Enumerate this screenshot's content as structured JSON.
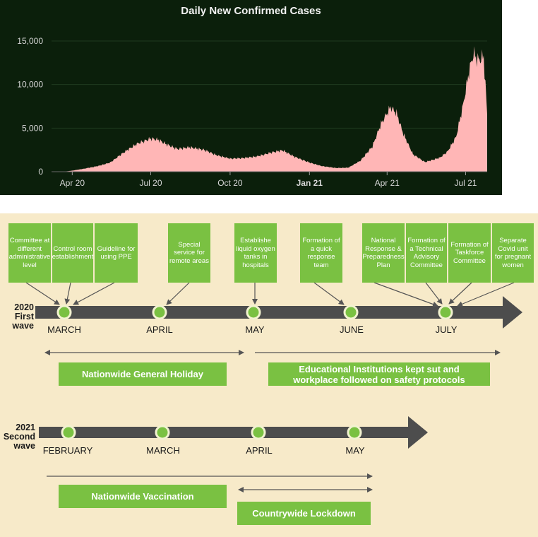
{
  "chart_data": {
    "type": "area",
    "title": "Daily New Confirmed Cases",
    "xlabel": "",
    "ylabel": "",
    "x_range": [
      "2020-03-08",
      "2021-07-26"
    ],
    "ylim": [
      0,
      15000
    ],
    "y_ticks": [
      {
        "value": 0,
        "label": "0"
      },
      {
        "value": 5000,
        "label": "5,000"
      },
      {
        "value": 10000,
        "label": "10,000"
      },
      {
        "value": 15000,
        "label": "15,000"
      }
    ],
    "x_ticks": [
      {
        "date": "2020-04-01",
        "label": "Apr 20",
        "bold": false
      },
      {
        "date": "2020-07-01",
        "label": "Jul 20",
        "bold": false
      },
      {
        "date": "2020-10-01",
        "label": "Oct 20",
        "bold": false
      },
      {
        "date": "2021-01-01",
        "label": "Jan 21",
        "bold": true
      },
      {
        "date": "2021-04-01",
        "label": "Apr 21",
        "bold": false
      },
      {
        "date": "2021-07-01",
        "label": "Jul 21",
        "bold": false
      }
    ],
    "grid": true,
    "colors": {
      "fill": "#ffb6b6",
      "background": "#0b1f0b",
      "grid": "#1f3a1f",
      "text": "#d8d8d8"
    },
    "series": [
      {
        "points": [
          [
            "2020-03-08",
            0
          ],
          [
            "2020-03-25",
            40
          ],
          [
            "2020-04-01",
            120
          ],
          [
            "2020-04-15",
            350
          ],
          [
            "2020-05-01",
            650
          ],
          [
            "2020-05-15",
            1050
          ],
          [
            "2020-06-01",
            2300
          ],
          [
            "2020-06-15",
            3200
          ],
          [
            "2020-07-01",
            3800
          ],
          [
            "2020-07-10",
            3650
          ],
          [
            "2020-07-20",
            3100
          ],
          [
            "2020-08-01",
            2600
          ],
          [
            "2020-08-15",
            2800
          ],
          [
            "2020-09-01",
            2500
          ],
          [
            "2020-09-15",
            1900
          ],
          [
            "2020-10-01",
            1500
          ],
          [
            "2020-10-15",
            1550
          ],
          [
            "2020-11-01",
            1750
          ],
          [
            "2020-11-20",
            2250
          ],
          [
            "2020-12-01",
            2450
          ],
          [
            "2020-12-15",
            1700
          ],
          [
            "2021-01-01",
            1050
          ],
          [
            "2021-01-15",
            650
          ],
          [
            "2021-02-01",
            420
          ],
          [
            "2021-02-15",
            460
          ],
          [
            "2021-03-01",
            1250
          ],
          [
            "2021-03-15",
            2900
          ],
          [
            "2021-03-25",
            5500
          ],
          [
            "2021-04-05",
            7400
          ],
          [
            "2021-04-12",
            6700
          ],
          [
            "2021-04-20",
            4300
          ],
          [
            "2021-05-01",
            2000
          ],
          [
            "2021-05-15",
            1100
          ],
          [
            "2021-06-01",
            1600
          ],
          [
            "2021-06-10",
            2300
          ],
          [
            "2021-06-20",
            4000
          ],
          [
            "2021-06-28",
            7600
          ],
          [
            "2021-07-05",
            11500
          ],
          [
            "2021-07-10",
            13500
          ],
          [
            "2021-07-16",
            12800
          ],
          [
            "2021-07-22",
            13200
          ],
          [
            "2021-07-26",
            6600
          ]
        ]
      }
    ]
  },
  "timeline": {
    "wave1": {
      "label_year": "2020",
      "label_text": "First wave",
      "months": [
        "MARCH",
        "APRIL",
        "MAY",
        "JUNE",
        "JULY"
      ],
      "boxes": [
        "Committee at different administrative level",
        "Control room establishment",
        "Guideline for using PPE",
        "Special service for remote areas",
        "Establishe liquid oxygen tanks in hospitals",
        "Formation of a quick response team",
        "National Response & Preparedness Plan",
        "Formation of a Technical Advisory Committee",
        "Formation of Taskforce Committee",
        "Separate Covid unit for pregnant women"
      ],
      "bar_holiday": "Nationwide General Holiday",
      "bar_education": "Educational Institutions kept sut and workplace followed on safety protocols"
    },
    "wave2": {
      "label_year": "2021",
      "label_text": "Second wave",
      "months": [
        "FEBRUARY",
        "MARCH",
        "APRIL",
        "MAY"
      ],
      "bar_vaccination": "Nationwide Vaccination",
      "bar_lockdown": "Countrywide Lockdown"
    },
    "colors": {
      "green": "#7ac142",
      "arrow": "#4d4d4d",
      "background": "#f7eac9"
    }
  }
}
